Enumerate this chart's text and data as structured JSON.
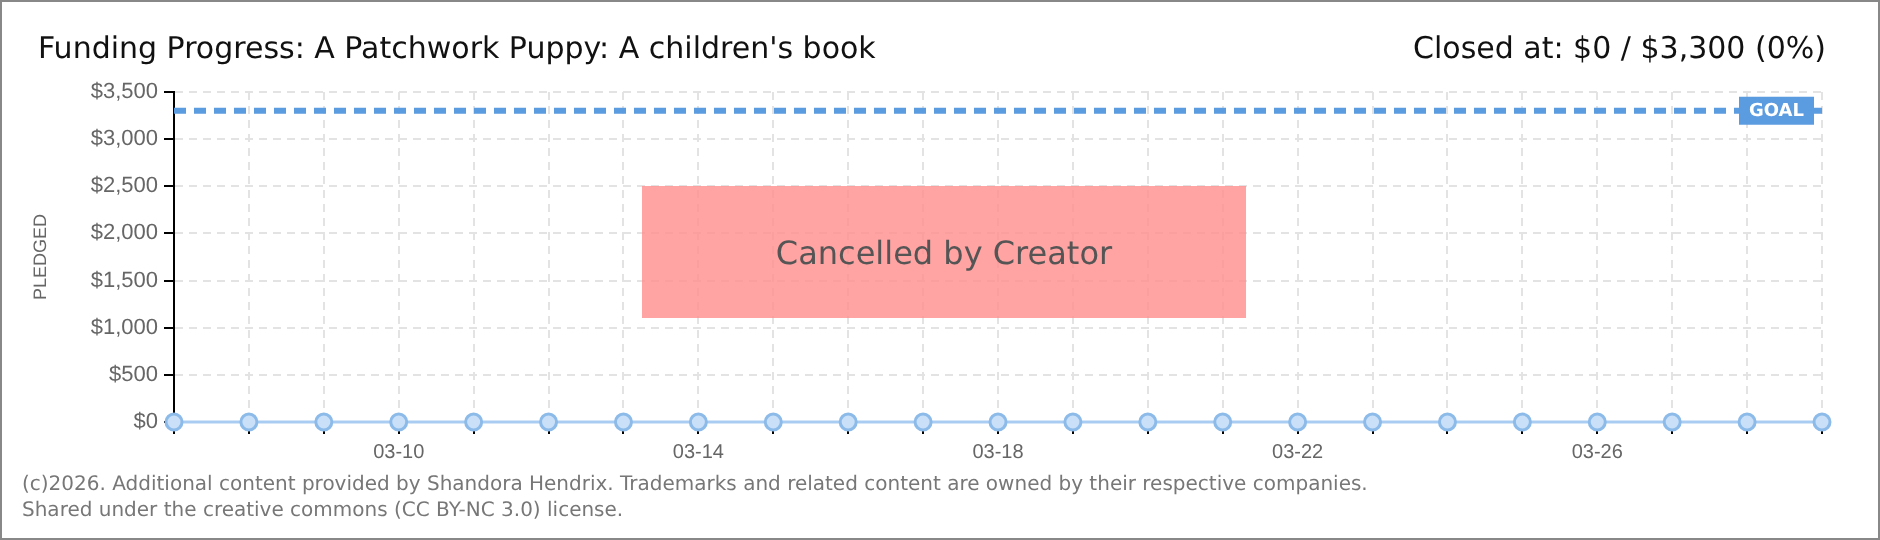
{
  "chart_data": {
    "type": "line",
    "title": "Funding Progress: A Patchwork Puppy: A children's book",
    "subtitle": "Closed at: $0 / $3,300 (0%)",
    "ylabel": "PLEDGED",
    "x": [
      "--03-07",
      "--03-08",
      "--03-09",
      "--03-10",
      "--03-11",
      "--03-12",
      "--03-13",
      "--03-14",
      "--03-15",
      "--03-16",
      "--03-17",
      "--03-18",
      "--03-19",
      "--03-20",
      "--03-21",
      "--03-22",
      "--03-23",
      "--03-24",
      "--03-25",
      "--03-26",
      "--03-27",
      "--03-28",
      "--03-29"
    ],
    "series": [
      {
        "color": "#a9cdf2",
        "values": [
          0,
          0,
          0,
          0,
          0,
          0,
          0,
          0,
          0,
          0,
          0,
          0,
          0,
          0,
          0,
          0,
          0,
          0,
          0,
          0,
          0,
          0,
          0
        ]
      }
    ],
    "xlim": [
      "--03-07",
      "--03-29"
    ],
    "xticks": [
      {
        "value": "--03-07",
        "label": null
      },
      {
        "value": "--03-08",
        "label": null
      },
      {
        "value": "--03-09",
        "label": null
      },
      {
        "value": "--03-10",
        "label": "03-10"
      },
      {
        "value": "--03-11",
        "label": null
      },
      {
        "value": "--03-12",
        "label": null
      },
      {
        "value": "--03-13",
        "label": null
      },
      {
        "value": "--03-14",
        "label": "03-14"
      },
      {
        "value": "--03-15",
        "label": null
      },
      {
        "value": "--03-16",
        "label": null
      },
      {
        "value": "--03-17",
        "label": null
      },
      {
        "value": "--03-18",
        "label": "03-18"
      },
      {
        "value": "--03-19",
        "label": null
      },
      {
        "value": "--03-20",
        "label": null
      },
      {
        "value": "--03-21",
        "label": null
      },
      {
        "value": "--03-22",
        "label": "03-22"
      },
      {
        "value": "--03-23",
        "label": null
      },
      {
        "value": "--03-24",
        "label": null
      },
      {
        "value": "--03-25",
        "label": null
      },
      {
        "value": "--03-26",
        "label": "03-26"
      },
      {
        "value": "--03-27",
        "label": null
      },
      {
        "value": "--03-28",
        "label": null
      },
      {
        "value": "--03-29",
        "label": null
      }
    ],
    "ylim": [
      0,
      3500
    ],
    "yticks": [
      {
        "value": 0,
        "label": "$0"
      },
      {
        "value": 500,
        "label": "$500"
      },
      {
        "value": 1000,
        "label": "$1,000"
      },
      {
        "value": 1500,
        "label": "$1,500"
      },
      {
        "value": 2000,
        "label": "$2,000"
      },
      {
        "value": 2500,
        "label": "$2,500"
      },
      {
        "value": 3000,
        "label": "$3,000"
      },
      {
        "value": 3500,
        "label": "$3,500"
      }
    ],
    "ref_lines": [
      {
        "axis": "y",
        "value": 3300,
        "label": "GOAL",
        "color": "#5b9be0",
        "line_style": "dashed"
      }
    ],
    "annotations": [
      "Cancelled by Creator",
      "(c)2026. Additional content provided by Shandora Hendrix. Trademarks and related content are owned by their respective companies.",
      "Shared under the creative commons (CC BY-NC 3.0) license."
    ],
    "grid": true,
    "legend": false,
    "marker": "circle",
    "line_style": "solid"
  }
}
